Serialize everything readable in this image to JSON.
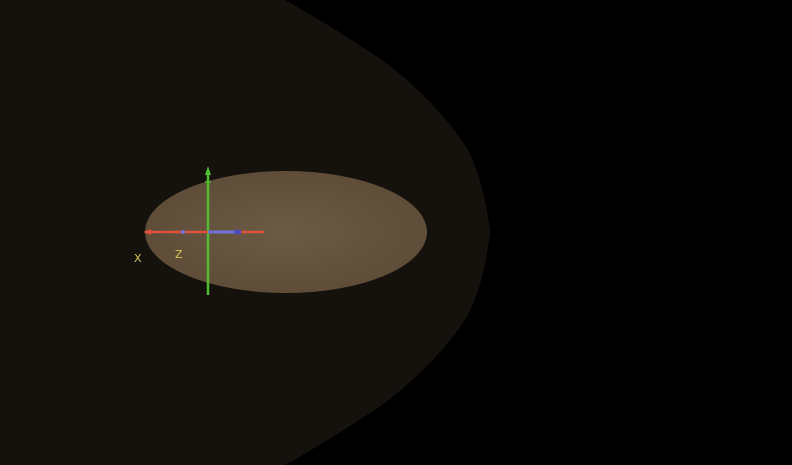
{
  "viewport": {
    "background_color": "#000000"
  },
  "scene": {
    "outer_volume_color": "#15110d",
    "disc_color": "#5c4a36",
    "disc_highlight_color": "#6b5a44"
  },
  "gizmo": {
    "x_axis_color": "#e0533a",
    "y_axis_color": "#4fbf2f",
    "z_axis_color": "#6f72d8",
    "labels": {
      "x": "X",
      "z": "Z"
    },
    "label_color": "#d8c85a"
  }
}
